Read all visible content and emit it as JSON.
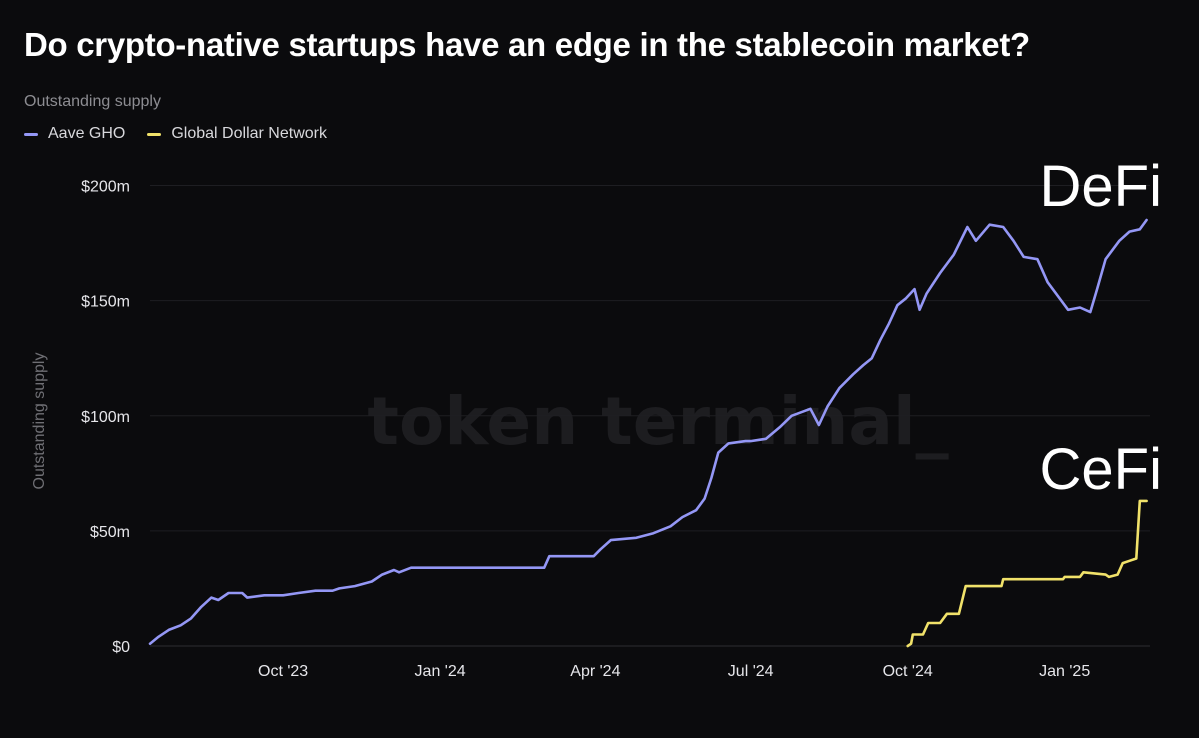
{
  "chart_data": {
    "type": "line",
    "title": "Do crypto-native startups have an edge in the stablecoin market?",
    "subtitle": "Outstanding supply",
    "ylabel": "Outstanding supply",
    "xlabel": "",
    "watermark": "token terminal_",
    "y_ticks": [
      {
        "value": 0,
        "label": "$0"
      },
      {
        "value": 50,
        "label": "$50m"
      },
      {
        "value": 100,
        "label": "$100m"
      },
      {
        "value": 150,
        "label": "$150m"
      },
      {
        "value": 200,
        "label": "$200m"
      }
    ],
    "ylim": [
      0,
      205
    ],
    "x_ticks": [
      {
        "date": "2023-10-01",
        "label": "Oct '23"
      },
      {
        "date": "2024-01-01",
        "label": "Jan '24"
      },
      {
        "date": "2024-04-01",
        "label": "Apr '24"
      },
      {
        "date": "2024-07-01",
        "label": "Jul '24"
      },
      {
        "date": "2024-10-01",
        "label": "Oct '24"
      },
      {
        "date": "2025-01-01",
        "label": "Jan '25"
      }
    ],
    "xlim": [
      "2023-07-15",
      "2025-02-20"
    ],
    "grid": true,
    "legend": "top-left",
    "annotations": [
      {
        "text": "DeFi",
        "series": "Aave GHO"
      },
      {
        "text": "CeFi",
        "series": "Global Dollar Network"
      }
    ],
    "series": [
      {
        "name": "Aave GHO",
        "color": "#9497f5",
        "points": [
          [
            "2023-07-15",
            1
          ],
          [
            "2023-07-20",
            4
          ],
          [
            "2023-07-26",
            7
          ],
          [
            "2023-08-02",
            9
          ],
          [
            "2023-08-08",
            12
          ],
          [
            "2023-08-14",
            17
          ],
          [
            "2023-08-20",
            21
          ],
          [
            "2023-08-24",
            20
          ],
          [
            "2023-08-30",
            23
          ],
          [
            "2023-09-07",
            23
          ],
          [
            "2023-09-10",
            21
          ],
          [
            "2023-09-20",
            22
          ],
          [
            "2023-10-01",
            22
          ],
          [
            "2023-10-10",
            23
          ],
          [
            "2023-10-20",
            24
          ],
          [
            "2023-10-30",
            24
          ],
          [
            "2023-11-03",
            25
          ],
          [
            "2023-11-12",
            26
          ],
          [
            "2023-11-22",
            28
          ],
          [
            "2023-11-28",
            31
          ],
          [
            "2023-12-05",
            33
          ],
          [
            "2023-12-08",
            32
          ],
          [
            "2023-12-15",
            34
          ],
          [
            "2023-12-31",
            34
          ],
          [
            "2024-01-15",
            34
          ],
          [
            "2024-02-01",
            34
          ],
          [
            "2024-02-15",
            34
          ],
          [
            "2024-03-02",
            34
          ],
          [
            "2024-03-05",
            39
          ],
          [
            "2024-03-20",
            39
          ],
          [
            "2024-03-31",
            39
          ],
          [
            "2024-04-04",
            42
          ],
          [
            "2024-04-10",
            46
          ],
          [
            "2024-04-25",
            47
          ],
          [
            "2024-05-05",
            49
          ],
          [
            "2024-05-15",
            52
          ],
          [
            "2024-05-22",
            56
          ],
          [
            "2024-05-30",
            59
          ],
          [
            "2024-06-04",
            64
          ],
          [
            "2024-06-08",
            73
          ],
          [
            "2024-06-12",
            84
          ],
          [
            "2024-06-18",
            88
          ],
          [
            "2024-06-28",
            89
          ],
          [
            "2024-07-01",
            89
          ],
          [
            "2024-07-10",
            90
          ],
          [
            "2024-07-18",
            95
          ],
          [
            "2024-07-25",
            100
          ],
          [
            "2024-08-05",
            103
          ],
          [
            "2024-08-10",
            96
          ],
          [
            "2024-08-15",
            104
          ],
          [
            "2024-08-22",
            112
          ],
          [
            "2024-08-30",
            118
          ],
          [
            "2024-09-05",
            122
          ],
          [
            "2024-09-10",
            125
          ],
          [
            "2024-09-15",
            133
          ],
          [
            "2024-09-20",
            140
          ],
          [
            "2024-09-25",
            148
          ],
          [
            "2024-09-30",
            151
          ],
          [
            "2024-10-05",
            155
          ],
          [
            "2024-10-08",
            146
          ],
          [
            "2024-10-12",
            153
          ],
          [
            "2024-10-20",
            162
          ],
          [
            "2024-10-28",
            170
          ],
          [
            "2024-11-05",
            182
          ],
          [
            "2024-11-10",
            176
          ],
          [
            "2024-11-18",
            183
          ],
          [
            "2024-11-26",
            182
          ],
          [
            "2024-12-02",
            176
          ],
          [
            "2024-12-08",
            169
          ],
          [
            "2024-12-16",
            168
          ],
          [
            "2024-12-22",
            158
          ],
          [
            "2024-12-30",
            150
          ],
          [
            "2025-01-03",
            146
          ],
          [
            "2025-01-10",
            147
          ],
          [
            "2025-01-16",
            145
          ],
          [
            "2025-01-20",
            155
          ],
          [
            "2025-01-25",
            168
          ],
          [
            "2025-02-02",
            176
          ],
          [
            "2025-02-08",
            180
          ],
          [
            "2025-02-14",
            181
          ],
          [
            "2025-02-18",
            185
          ]
        ]
      },
      {
        "name": "Global Dollar Network",
        "color": "#f1e26a",
        "points": [
          [
            "2024-10-01",
            0
          ],
          [
            "2024-10-03",
            1
          ],
          [
            "2024-10-04",
            5
          ],
          [
            "2024-10-10",
            5
          ],
          [
            "2024-10-13",
            10
          ],
          [
            "2024-10-20",
            10
          ],
          [
            "2024-10-24",
            14
          ],
          [
            "2024-10-31",
            14
          ],
          [
            "2024-11-04",
            26
          ],
          [
            "2024-11-25",
            26
          ],
          [
            "2024-11-26",
            29
          ],
          [
            "2024-12-31",
            29
          ],
          [
            "2025-01-01",
            30
          ],
          [
            "2025-01-10",
            30
          ],
          [
            "2025-01-12",
            32
          ],
          [
            "2025-01-25",
            31
          ],
          [
            "2025-01-27",
            30
          ],
          [
            "2025-02-01",
            31
          ],
          [
            "2025-02-04",
            36
          ],
          [
            "2025-02-08",
            37
          ],
          [
            "2025-02-12",
            38
          ],
          [
            "2025-02-14",
            63
          ],
          [
            "2025-02-18",
            63
          ]
        ]
      }
    ]
  }
}
